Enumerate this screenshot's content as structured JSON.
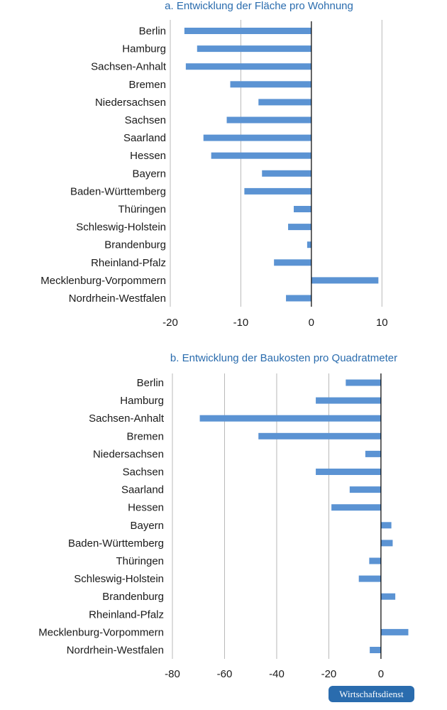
{
  "chart_data": [
    {
      "type": "bar",
      "orientation": "horizontal",
      "title": "a. Entwicklung der Fläche pro Wohnung",
      "categories": [
        "Berlin",
        "Hamburg",
        "Sachsen-Anhalt",
        "Bremen",
        "Niedersachsen",
        "Sachsen",
        "Saarland",
        "Hessen",
        "Bayern",
        "Baden-Württemberg",
        "Thüringen",
        "Schleswig-Holstein",
        "Brandenburg",
        "Rheinland-Pfalz",
        "Mecklenburg-Vorpommern",
        "Nordrhein-Westfalen"
      ],
      "values": [
        -18,
        -16.2,
        -17.8,
        -11.5,
        -7.5,
        -12,
        -15.3,
        -14.2,
        -7,
        -9.5,
        -2.5,
        -3.3,
        -0.6,
        -5.3,
        9.5,
        -3.6
      ],
      "xlim": [
        -20,
        15
      ],
      "xticks": [
        -20,
        -10,
        0,
        10
      ],
      "xtick_labels": [
        "-20",
        "-10",
        "0",
        "10"
      ],
      "grid": true,
      "bar_color": "#5b93d3",
      "xlabel": "",
      "ylabel": ""
    },
    {
      "type": "bar",
      "orientation": "horizontal",
      "title": "b. Entwicklung der Baukosten pro Quadratmeter",
      "categories": [
        "Berlin",
        "Hamburg",
        "Sachsen-Anhalt",
        "Bremen",
        "Niedersachsen",
        "Sachsen",
        "Saarland",
        "Hessen",
        "Bayern",
        "Baden-Württemberg",
        "Thüringen",
        "Schleswig-Holstein",
        "Brandenburg",
        "Rheinland-Pfalz",
        "Mecklenburg-Vorpommern",
        "Nordrhein-Westfalen"
      ],
      "values": [
        -13.5,
        -25,
        -69.5,
        -47,
        -6,
        -25,
        -12,
        -19,
        4,
        4.5,
        -4.5,
        -8.5,
        5.5,
        0,
        10.5,
        -4.3
      ],
      "xlim": [
        -80,
        12
      ],
      "xticks": [
        -80,
        -60,
        -40,
        -20,
        0
      ],
      "xtick_labels": [
        "-80",
        "-60",
        "-40",
        "-20",
        "0"
      ],
      "grid": true,
      "bar_color": "#5b93d3",
      "xlabel": "",
      "ylabel": ""
    }
  ],
  "logo_text": "Wirtschaftsdienst",
  "colors": {
    "title": "#2a6cae",
    "bar": "#5b93d3",
    "grid": "#b8b8b8",
    "axis": "#000000",
    "logo_bg": "#2a6cae"
  }
}
